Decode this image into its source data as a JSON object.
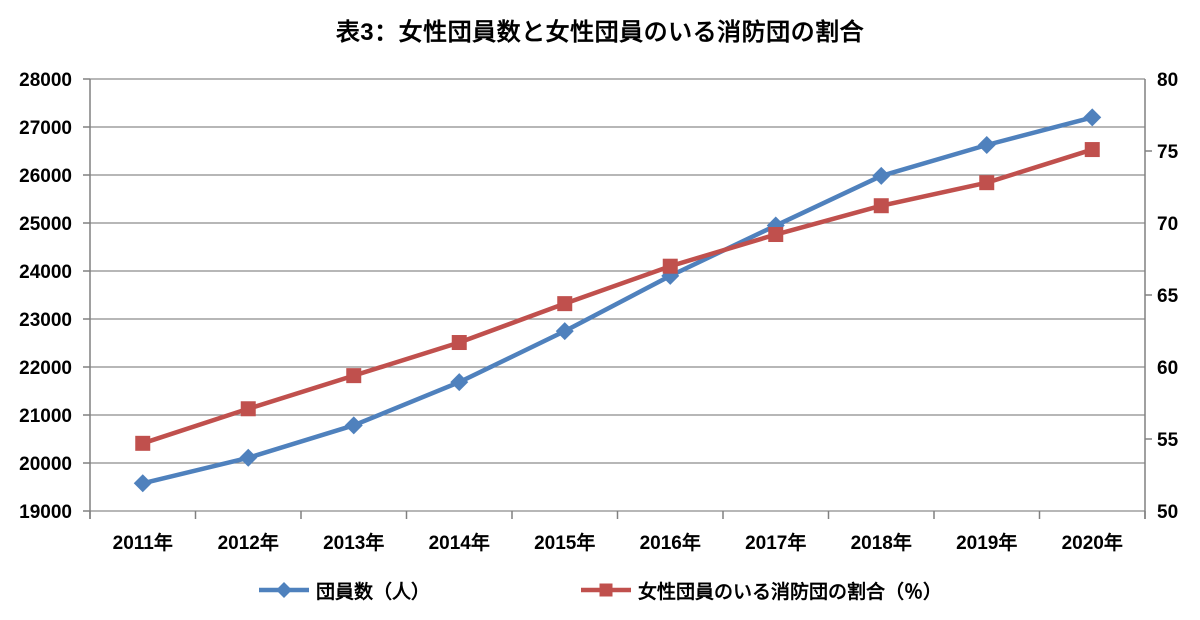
{
  "chart_data": {
    "type": "line",
    "title": "表3：女性団員数と女性団員のいる消防団の割合",
    "categories": [
      "2011年",
      "2012年",
      "2013年",
      "2014年",
      "2015年",
      "2016年",
      "2017年",
      "2018年",
      "2019年",
      "2020年"
    ],
    "series": [
      {
        "name": "団員数（人）",
        "axis": "left",
        "color": "#4F81BD",
        "marker": "diamond",
        "values": [
          19577,
          20109,
          20785,
          21684,
          22747,
          23899,
          24947,
          25981,
          26625,
          27200
        ]
      },
      {
        "name": "女性団員のいる消防団の割合（％）",
        "axis": "right",
        "color": "#C0504D",
        "marker": "square",
        "values": [
          54.7,
          57.1,
          59.4,
          61.7,
          64.4,
          67.0,
          69.2,
          71.2,
          72.8,
          75.1
        ]
      }
    ],
    "left_axis": {
      "min": 19000,
      "max": 28000,
      "step": 1000
    },
    "right_axis": {
      "min": 50,
      "max": 80,
      "label_step": 5
    },
    "grid": true,
    "legend_position": "bottom",
    "colors": {
      "grid": "#8C8C8C",
      "axis": "#808080",
      "text": "#000000"
    }
  }
}
